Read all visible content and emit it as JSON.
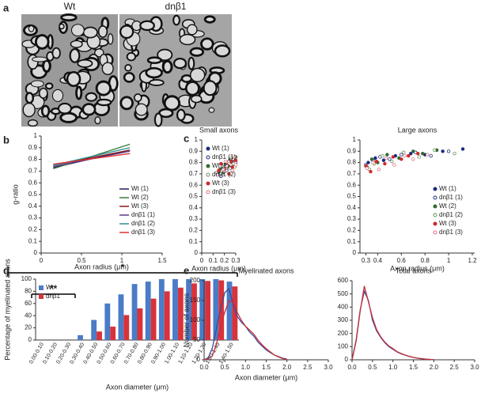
{
  "panel_a": {
    "panel_label": "a",
    "captions": [
      "Wt",
      "dnβ1"
    ]
  },
  "chart_data": [
    {
      "type": "line",
      "panel_label": "b",
      "ylabel": "g-ratio",
      "xlabel": "Axon radius (μm)",
      "x": [
        0.15,
        1.1
      ],
      "xlim": [
        0,
        1.5
      ],
      "xticks": [
        0,
        0.5,
        1,
        1.5
      ],
      "ylim": [
        0,
        1
      ],
      "yticks": [
        0,
        0.1,
        0.2,
        0.3,
        0.4,
        0.5,
        0.6,
        0.7,
        0.8,
        0.9,
        1
      ],
      "legend": "lower right",
      "series": [
        {
          "name": "Wt (1)",
          "color": "#1f1f5c",
          "values": [
            0.73,
            0.88
          ]
        },
        {
          "name": "Wt (2)",
          "color": "#3a7a3a",
          "values": [
            0.72,
            0.93
          ]
        },
        {
          "name": "Wt (3)",
          "color": "#8b1a1a",
          "values": [
            0.75,
            0.88
          ]
        },
        {
          "name": "dnβ1 (1)",
          "color": "#5b3b8c",
          "values": [
            0.74,
            0.87
          ]
        },
        {
          "name": "dnβ1 (2)",
          "color": "#2a8f8f",
          "values": [
            0.75,
            0.9
          ]
        },
        {
          "name": "dnβ1 (3)",
          "color": "#e03030",
          "values": [
            0.76,
            0.85
          ]
        }
      ]
    },
    {
      "type": "scatter",
      "panel_label": "c",
      "title": "Small axons",
      "xlabel": "Axon radius (μm)",
      "xlim": [
        0,
        0.3
      ],
      "xticks": [
        0,
        0.1,
        0.2,
        0.3
      ],
      "ylim": [
        0,
        1
      ],
      "yticks": [
        0,
        0.1,
        0.2,
        0.3,
        0.4,
        0.5,
        0.6,
        0.7,
        0.8,
        0.9,
        1
      ],
      "legend": "upper left",
      "series": [
        {
          "name": "Wt (1)",
          "color": "#1a2a80",
          "marker": "filled",
          "x": [
            0.15,
            0.18,
            0.21,
            0.23,
            0.25,
            0.27,
            0.28,
            0.29
          ],
          "values": [
            0.72,
            0.75,
            0.78,
            0.8,
            0.77,
            0.82,
            0.79,
            0.84
          ]
        },
        {
          "name": "dnβ1 (1)",
          "color": "#1a2a80",
          "marker": "open",
          "x": [
            0.14,
            0.17,
            0.2,
            0.22,
            0.24,
            0.26,
            0.28,
            0.3
          ],
          "values": [
            0.7,
            0.68,
            0.76,
            0.73,
            0.81,
            0.78,
            0.83,
            0.8
          ]
        },
        {
          "name": "Wt (2)",
          "color": "#2f6b2f",
          "marker": "filled",
          "x": [
            0.16,
            0.19,
            0.21,
            0.24,
            0.25,
            0.27,
            0.29,
            0.3
          ],
          "values": [
            0.74,
            0.71,
            0.79,
            0.76,
            0.83,
            0.8,
            0.77,
            0.85
          ]
        },
        {
          "name": "dnβ1 (2)",
          "color": "#6a8f5a",
          "marker": "open",
          "x": [
            0.13,
            0.18,
            0.2,
            0.22,
            0.25,
            0.26,
            0.28,
            0.29
          ],
          "values": [
            0.71,
            0.77,
            0.72,
            0.8,
            0.75,
            0.84,
            0.79,
            0.76
          ]
        },
        {
          "name": "Wt (3)",
          "color": "#d02828",
          "marker": "filled",
          "x": [
            0.15,
            0.17,
            0.2,
            0.23,
            0.24,
            0.26,
            0.27,
            0.3
          ],
          "values": [
            0.73,
            0.79,
            0.74,
            0.78,
            0.7,
            0.81,
            0.76,
            0.82
          ]
        },
        {
          "name": "dnβ1 (3)",
          "color": "#e07080",
          "marker": "open",
          "x": [
            0.14,
            0.19,
            0.21,
            0.22,
            0.24,
            0.27,
            0.29,
            0.3
          ],
          "values": [
            0.69,
            0.74,
            0.81,
            0.77,
            0.79,
            0.73,
            0.85,
            0.78
          ]
        }
      ]
    },
    {
      "type": "scatter",
      "title": "Large axons",
      "xlabel": "Axon radius (μm)",
      "xlim": [
        0.25,
        1.22
      ],
      "xticks": [
        0.3,
        0.4,
        0.6,
        0.8,
        1,
        1.2
      ],
      "ylim": [
        0,
        1
      ],
      "yticks": [
        0,
        0.1,
        0.2,
        0.3,
        0.4,
        0.5,
        0.6,
        0.7,
        0.8,
        0.9,
        1
      ],
      "legend": "lower right",
      "series": [
        {
          "name": "Wt (1)",
          "color": "#1a2a80",
          "marker": "filled",
          "x": [
            0.32,
            0.38,
            0.45,
            0.55,
            0.68,
            0.8,
            0.95,
            1.12
          ],
          "values": [
            0.8,
            0.84,
            0.82,
            0.86,
            0.88,
            0.87,
            0.9,
            0.92
          ]
        },
        {
          "name": "dnβ1 (1)",
          "color": "#1a2a80",
          "marker": "open",
          "x": [
            0.3,
            0.36,
            0.42,
            0.5,
            0.6,
            0.72,
            0.85,
            1.0
          ],
          "values": [
            0.78,
            0.82,
            0.85,
            0.83,
            0.87,
            0.89,
            0.86,
            0.9
          ]
        },
        {
          "name": "Wt (2)",
          "color": "#2f6b2f",
          "marker": "filled",
          "x": [
            0.31,
            0.35,
            0.4,
            0.48,
            0.58,
            0.7,
            0.78,
            0.9
          ],
          "values": [
            0.76,
            0.83,
            0.8,
            0.87,
            0.84,
            0.9,
            0.88,
            0.91
          ]
        },
        {
          "name": "dnβ1 (2)",
          "color": "#6a8f5a",
          "marker": "open",
          "x": [
            0.33,
            0.37,
            0.44,
            0.52,
            0.62,
            0.75,
            0.88,
            1.05
          ],
          "values": [
            0.74,
            0.79,
            0.86,
            0.81,
            0.89,
            0.85,
            0.91,
            0.88
          ]
        },
        {
          "name": "Wt (3)",
          "color": "#d02828",
          "marker": "filled",
          "x": [
            0.3,
            0.34,
            0.39,
            0.46,
            0.53,
            0.6,
            0.66,
            0.74
          ],
          "values": [
            0.77,
            0.72,
            0.81,
            0.79,
            0.85,
            0.83,
            0.86,
            0.88
          ]
        },
        {
          "name": "dnβ1 (3)",
          "color": "#e07080",
          "marker": "open",
          "x": [
            0.31,
            0.36,
            0.41,
            0.47,
            0.54,
            0.63,
            0.7,
            0.82
          ],
          "values": [
            0.75,
            0.8,
            0.74,
            0.84,
            0.78,
            0.86,
            0.83,
            0.87
          ]
        }
      ]
    },
    {
      "type": "bar",
      "panel_label": "d",
      "ylabel": "Percentage of myelinated axons",
      "xlabel": "Axon diameter (μm)",
      "categories": [
        "0.00-0.10",
        "0.10-0.20",
        "0.20-0.30",
        "0.30-0.40",
        "0.40-0.50",
        "0.50-0.60",
        "0.60-0.70",
        "0.70-0.80",
        "0.80-0.90",
        "0.90-1.00",
        "1.00-1.10",
        "1.10-1.20",
        "1.20-1.30",
        "1.30-1.40",
        "1.40-1.50"
      ],
      "ylim": [
        0,
        100
      ],
      "yticks": [
        0,
        20,
        40,
        60,
        80,
        100
      ],
      "legend": "upper left",
      "annotations": [
        "*",
        "**"
      ],
      "series": [
        {
          "name": "Wt",
          "color": "#4a7cc7",
          "values": [
            0,
            0,
            0,
            8,
            33,
            60,
            75,
            92,
            96,
            100,
            100,
            100,
            100,
            100,
            96
          ]
        },
        {
          "name": "dnβ1",
          "color": "#d9323a",
          "values": [
            0,
            0,
            0,
            0,
            14,
            22,
            41,
            52,
            68,
            80,
            86,
            93,
            97,
            98,
            88
          ]
        }
      ]
    },
    {
      "type": "line",
      "panel_label": "e",
      "title": "Myelinated axons",
      "ylabel": "Number of axons",
      "xlabel": "Axon diameter (μm)",
      "x": [
        0,
        0.1,
        0.2,
        0.3,
        0.4,
        0.5,
        0.6,
        0.7,
        0.8,
        0.9,
        1.0,
        1.1,
        1.2,
        1.3,
        1.4,
        1.5,
        1.6,
        1.7,
        1.8,
        1.9,
        2.0
      ],
      "xlim": [
        0,
        3
      ],
      "xticks": [
        {
          "value": 0,
          "label": "0.0"
        },
        0.5,
        {
          "value": 1,
          "label": "1.0"
        },
        1.5,
        {
          "value": 2,
          "label": "2.0"
        },
        2.5,
        {
          "value": 3,
          "label": "3.0"
        }
      ],
      "ylim": [
        0,
        200
      ],
      "yticks": [
        0,
        50,
        100,
        150,
        200
      ],
      "series": [
        {
          "color": "#3a4a9a",
          "values": [
            0,
            5,
            30,
            80,
            130,
            170,
            180,
            140,
            110,
            95,
            85,
            70,
            60,
            45,
            35,
            25,
            18,
            12,
            8,
            4,
            2
          ]
        },
        {
          "color": "#c8303a",
          "values": [
            0,
            2,
            10,
            40,
            90,
            120,
            150,
            145,
            120,
            100,
            85,
            75,
            65,
            50,
            38,
            28,
            20,
            12,
            7,
            3,
            1
          ]
        }
      ]
    },
    {
      "type": "line",
      "title": "Total axons",
      "x": [
        0,
        0.1,
        0.2,
        0.3,
        0.4,
        0.5,
        0.6,
        0.7,
        0.8,
        0.9,
        1.0,
        1.1,
        1.2,
        1.3,
        1.4,
        1.5,
        1.6,
        1.7,
        1.8,
        1.9,
        2.0
      ],
      "xlim": [
        0,
        3
      ],
      "xticks": [
        {
          "value": 0,
          "label": "0.0"
        },
        0.5,
        {
          "value": 1,
          "label": "1.0"
        },
        1.5,
        {
          "value": 2,
          "label": "2.0"
        },
        2.5,
        {
          "value": 3,
          "label": "3.0"
        }
      ],
      "ylim": [
        0,
        600
      ],
      "yticks": [
        0,
        100,
        200,
        300,
        400,
        500,
        600
      ],
      "series": [
        {
          "color": "#3a4a9a",
          "values": [
            0,
            150,
            380,
            520,
            450,
            300,
            220,
            170,
            130,
            100,
            80,
            60,
            45,
            35,
            25,
            18,
            12,
            8,
            5,
            3,
            1
          ]
        },
        {
          "color": "#c8303a",
          "values": [
            0,
            140,
            370,
            560,
            440,
            320,
            230,
            175,
            135,
            105,
            85,
            62,
            48,
            36,
            26,
            19,
            13,
            9,
            5,
            3,
            1
          ]
        }
      ]
    }
  ]
}
